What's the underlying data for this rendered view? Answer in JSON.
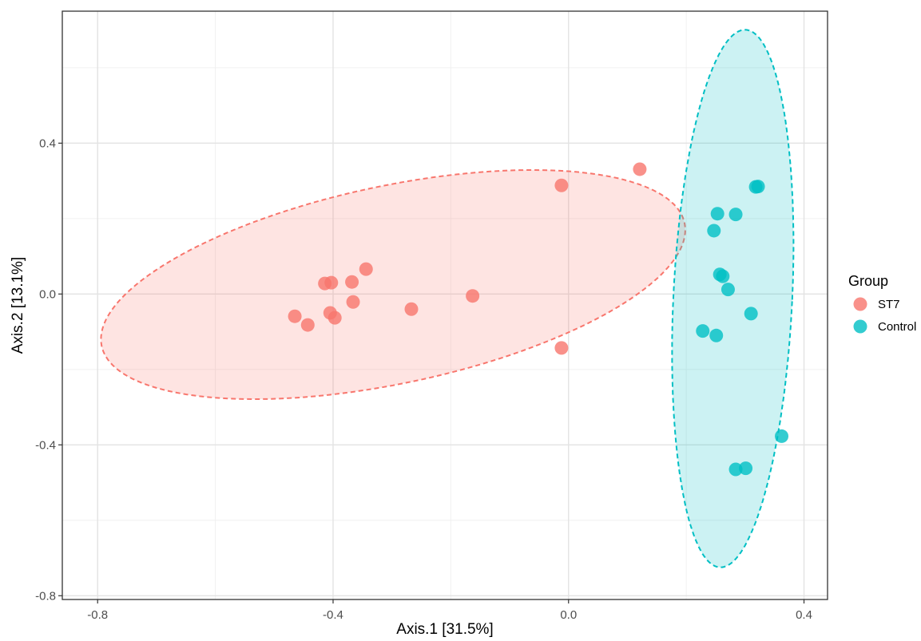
{
  "chart_data": {
    "type": "scatter",
    "title": "",
    "xlabel": "Axis.1   [31.5%]",
    "ylabel": "Axis.2   [13.1%]",
    "xlim": [
      -0.86,
      0.44
    ],
    "ylim": [
      -0.81,
      0.75
    ],
    "x_ticks": [
      -0.8,
      -0.4,
      0.0,
      0.4
    ],
    "x_tick_labels": [
      "-0.8",
      "-0.4",
      "0.0",
      "0.4"
    ],
    "y_ticks": [
      -0.8,
      -0.4,
      0.0,
      0.4
    ],
    "y_tick_labels": [
      "-0.8",
      "-0.4",
      "0.0",
      "0.4"
    ],
    "grid": true,
    "legend": {
      "title": "Group",
      "position": "right"
    },
    "series": [
      {
        "name": "ST7",
        "color": "#F8766D",
        "points": [
          [
            -0.414,
            0.028
          ],
          [
            -0.403,
            0.03
          ],
          [
            -0.368,
            0.032
          ],
          [
            -0.344,
            0.066
          ],
          [
            -0.465,
            -0.059
          ],
          [
            -0.443,
            -0.082
          ],
          [
            -0.405,
            -0.05
          ],
          [
            -0.397,
            -0.063
          ],
          [
            -0.366,
            -0.021
          ],
          [
            -0.267,
            -0.04
          ],
          [
            -0.163,
            -0.005
          ],
          [
            -0.012,
            0.288
          ],
          [
            0.121,
            0.331
          ],
          [
            -0.012,
            -0.143
          ]
        ],
        "ellipse": {
          "center": [
            -0.298,
            0.025
          ],
          "semi_axes": [
            0.524,
            0.253
          ],
          "angle_deg": 21.5
        }
      },
      {
        "name": "Control",
        "color": "#00BFC4",
        "points": [
          [
            0.318,
            0.284
          ],
          [
            0.322,
            0.285
          ],
          [
            0.253,
            0.213
          ],
          [
            0.284,
            0.211
          ],
          [
            0.247,
            0.168
          ],
          [
            0.257,
            0.052
          ],
          [
            0.262,
            0.047
          ],
          [
            0.271,
            0.012
          ],
          [
            0.31,
            -0.052
          ],
          [
            0.228,
            -0.098
          ],
          [
            0.251,
            -0.11
          ],
          [
            0.362,
            -0.377
          ],
          [
            0.284,
            -0.465
          ],
          [
            0.301,
            -0.462
          ]
        ],
        "ellipse": {
          "center": [
            0.279,
            -0.012
          ],
          "semi_axes": [
            0.101,
            0.713
          ],
          "angle_deg": -1.7
        }
      }
    ]
  }
}
